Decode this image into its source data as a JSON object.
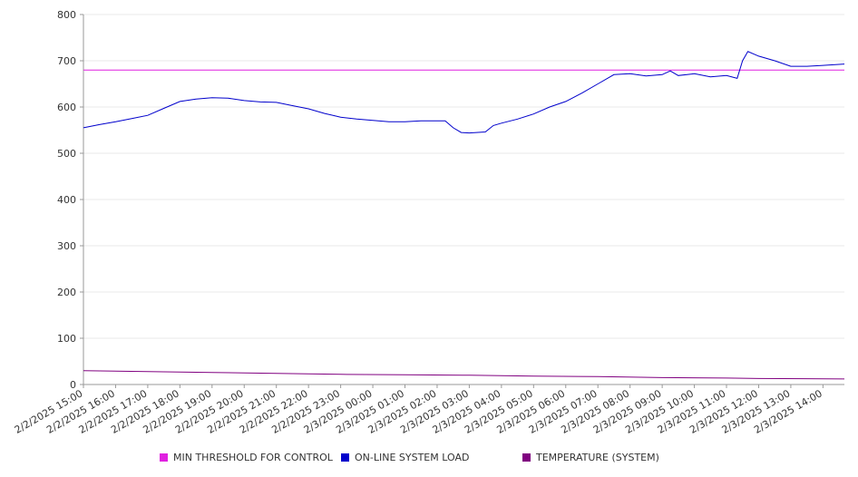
{
  "chart_data": {
    "type": "line",
    "title": "",
    "xlabel": "",
    "ylabel": "",
    "ylim": [
      0,
      800
    ],
    "yticks": [
      0,
      100,
      200,
      300,
      400,
      500,
      600,
      700,
      800
    ],
    "grid": true,
    "legend_position": "bottom",
    "x_start": "2/2/2025 15:00",
    "x_end": "2/3/2025 14:40",
    "xtick_labels": [
      "2/2/2025 15:00",
      "2/2/2025 16:00",
      "2/2/2025 17:00",
      "2/2/2025 18:00",
      "2/2/2025 19:00",
      "2/2/2025 20:00",
      "2/2/2025 21:00",
      "2/2/2025 22:00",
      "2/2/2025 23:00",
      "2/3/2025 00:00",
      "2/3/2025 01:00",
      "2/3/2025 02:00",
      "2/3/2025 03:00",
      "2/3/2025 04:00",
      "2/3/2025 05:00",
      "2/3/2025 06:00",
      "2/3/2025 07:00",
      "2/3/2025 08:00",
      "2/3/2025 09:00",
      "2/3/2025 10:00",
      "2/3/2025 11:00",
      "2/3/2025 12:00",
      "2/3/2025 13:00",
      "2/3/2025 14:00"
    ],
    "series": [
      {
        "name": "MIN THRESHOLD FOR CONTROL",
        "color": "#e020e0",
        "points": [
          [
            "2/2/2025 15:00",
            680
          ],
          [
            "2/3/2025 14:40",
            680
          ]
        ]
      },
      {
        "name": "ON-LINE SYSTEM LOAD",
        "color": "#0000cc",
        "points": [
          [
            "2/2/2025 15:00",
            555
          ],
          [
            "2/2/2025 15:30",
            562
          ],
          [
            "2/2/2025 16:00",
            568
          ],
          [
            "2/2/2025 16:30",
            575
          ],
          [
            "2/2/2025 17:00",
            582
          ],
          [
            "2/2/2025 17:30",
            597
          ],
          [
            "2/2/2025 18:00",
            612
          ],
          [
            "2/2/2025 18:30",
            617
          ],
          [
            "2/2/2025 19:00",
            620
          ],
          [
            "2/2/2025 19:30",
            619
          ],
          [
            "2/2/2025 20:00",
            614
          ],
          [
            "2/2/2025 20:30",
            611
          ],
          [
            "2/2/2025 21:00",
            610
          ],
          [
            "2/2/2025 21:30",
            603
          ],
          [
            "2/2/2025 22:00",
            596
          ],
          [
            "2/2/2025 22:30",
            586
          ],
          [
            "2/2/2025 23:00",
            578
          ],
          [
            "2/2/2025 23:30",
            574
          ],
          [
            "2/3/2025 00:00",
            571
          ],
          [
            "2/3/2025 00:30",
            568
          ],
          [
            "2/3/2025 01:00",
            568
          ],
          [
            "2/3/2025 01:30",
            570
          ],
          [
            "2/3/2025 02:00",
            570
          ],
          [
            "2/3/2025 02:15",
            570
          ],
          [
            "2/3/2025 02:30",
            555
          ],
          [
            "2/3/2025 02:45",
            545
          ],
          [
            "2/3/2025 03:00",
            544
          ],
          [
            "2/3/2025 03:30",
            546
          ],
          [
            "2/3/2025 03:45",
            560
          ],
          [
            "2/3/2025 04:00",
            565
          ],
          [
            "2/3/2025 04:30",
            574
          ],
          [
            "2/3/2025 05:00",
            585
          ],
          [
            "2/3/2025 05:30",
            600
          ],
          [
            "2/3/2025 06:00",
            612
          ],
          [
            "2/3/2025 06:30",
            630
          ],
          [
            "2/3/2025 07:00",
            650
          ],
          [
            "2/3/2025 07:30",
            670
          ],
          [
            "2/3/2025 08:00",
            672
          ],
          [
            "2/3/2025 08:30",
            667
          ],
          [
            "2/3/2025 09:00",
            670
          ],
          [
            "2/3/2025 09:15",
            678
          ],
          [
            "2/3/2025 09:30",
            668
          ],
          [
            "2/3/2025 10:00",
            672
          ],
          [
            "2/3/2025 10:30",
            665
          ],
          [
            "2/3/2025 11:00",
            668
          ],
          [
            "2/3/2025 11:20",
            662
          ],
          [
            "2/3/2025 11:30",
            700
          ],
          [
            "2/3/2025 11:40",
            720
          ],
          [
            "2/3/2025 12:00",
            710
          ],
          [
            "2/3/2025 12:30",
            700
          ],
          [
            "2/3/2025 13:00",
            688
          ],
          [
            "2/3/2025 13:30",
            688
          ],
          [
            "2/3/2025 14:00",
            690
          ],
          [
            "2/3/2025 14:40",
            693
          ]
        ]
      },
      {
        "name": "TEMPERATURE (SYSTEM)",
        "color": "#800080",
        "points": [
          [
            "2/2/2025 15:00",
            30
          ],
          [
            "2/2/2025 17:00",
            28
          ],
          [
            "2/2/2025 19:00",
            26
          ],
          [
            "2/2/2025 21:00",
            24
          ],
          [
            "2/2/2025 23:00",
            22
          ],
          [
            "2/3/2025 01:00",
            21
          ],
          [
            "2/3/2025 03:00",
            20
          ],
          [
            "2/3/2025 05:00",
            18
          ],
          [
            "2/3/2025 07:00",
            17
          ],
          [
            "2/3/2025 09:00",
            15
          ],
          [
            "2/3/2025 11:00",
            14
          ],
          [
            "2/3/2025 12:00",
            13
          ],
          [
            "2/3/2025 14:40",
            12
          ]
        ]
      }
    ]
  }
}
